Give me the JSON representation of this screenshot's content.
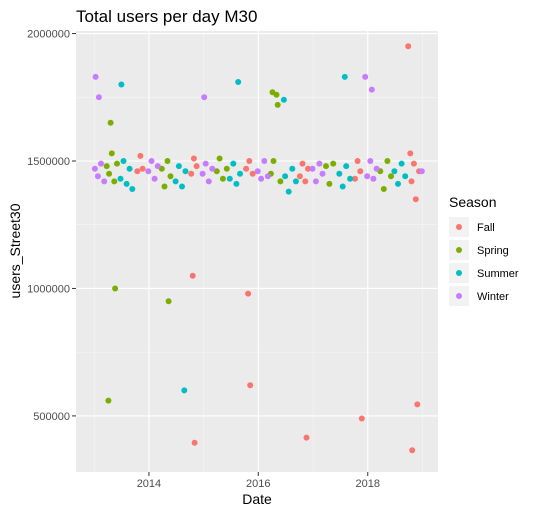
{
  "chart_data": {
    "type": "scatter",
    "title": "Total users per day M30",
    "xlabel": "Date",
    "ylabel": "users_Street30",
    "xlim": [
      "2012-09-01",
      "2019-04-15"
    ],
    "ylim": [
      280000,
      2010000
    ],
    "x_ticks": [
      "2014",
      "2016",
      "2018"
    ],
    "y_ticks": [
      "500000",
      "1000000",
      "1500000",
      "2000000"
    ],
    "grid": true,
    "legend": {
      "title": "Season",
      "placement": "right"
    },
    "series": [
      {
        "name": "Fall",
        "color": "#F8766D",
        "x": [
          "2013-10-15",
          "2013-11-05",
          "2013-11-20",
          "2014-10-10",
          "2014-10-28",
          "2014-11-15",
          "2015-10-12",
          "2015-11-02",
          "2015-11-25",
          "2016-10-05",
          "2016-10-22",
          "2016-11-10",
          "2016-11-28",
          "2017-10-08",
          "2017-10-25",
          "2017-11-12",
          "2018-09-28",
          "2018-10-12",
          "2018-10-20",
          "2018-11-05",
          "2018-11-18",
          "2018-12-10",
          "2014-11-02",
          "2015-11-08",
          "2016-11-18",
          "2017-11-22",
          "2018-10-25",
          "2018-11-28",
          "2014-10-20",
          "2015-10-25"
        ],
        "y": [
          1460000,
          1520000,
          1470000,
          1450000,
          1510000,
          1480000,
          1470000,
          1500000,
          1450000,
          1440000,
          1490000,
          1420000,
          1470000,
          1430000,
          1500000,
          1460000,
          1950000,
          1530000,
          1420000,
          1490000,
          1350000,
          1460000,
          395000,
          620000,
          415000,
          490000,
          365000,
          545000,
          1050000,
          980000
        ]
      },
      {
        "name": "Spring",
        "color": "#7CAE00",
        "x": [
          "2013-03-25",
          "2013-04-10",
          "2013-04-28",
          "2013-05-15",
          "2013-06-02",
          "2014-03-28",
          "2014-04-15",
          "2014-05-05",
          "2014-05-25",
          "2015-03-30",
          "2015-04-18",
          "2015-05-10",
          "2015-06-05",
          "2016-03-25",
          "2016-04-12",
          "2016-05-02",
          "2016-05-28",
          "2017-03-28",
          "2017-04-20",
          "2017-05-15",
          "2018-03-26",
          "2018-04-18",
          "2018-05-12",
          "2018-06-05",
          "2013-04-05",
          "2013-04-20",
          "2016-04-05",
          "2016-05-10",
          "2013-05-20",
          "2014-05-12"
        ],
        "y": [
          1480000,
          1450000,
          1530000,
          1420000,
          1490000,
          1470000,
          1400000,
          1500000,
          1440000,
          1460000,
          1510000,
          1430000,
          1470000,
          1450000,
          1500000,
          1760000,
          1420000,
          1480000,
          1410000,
          1490000,
          1460000,
          1390000,
          1500000,
          1440000,
          560000,
          1650000,
          1770000,
          1720000,
          1000000,
          950000
        ]
      },
      {
        "name": "Summer",
        "color": "#00BFC4",
        "x": [
          "2013-06-25",
          "2013-07-15",
          "2013-08-05",
          "2013-08-25",
          "2013-09-12",
          "2014-06-28",
          "2014-07-20",
          "2014-08-10",
          "2014-09-02",
          "2015-06-25",
          "2015-07-18",
          "2015-08-08",
          "2015-09-01",
          "2016-06-28",
          "2016-07-22",
          "2016-08-15",
          "2016-09-08",
          "2017-06-25",
          "2017-07-18",
          "2017-08-10",
          "2017-09-05",
          "2018-06-28",
          "2018-07-22",
          "2018-08-15",
          "2018-09-08",
          "2013-07-01",
          "2015-08-20",
          "2017-08-01",
          "2016-06-20",
          "2014-08-25"
        ],
        "y": [
          1430000,
          1500000,
          1410000,
          1470000,
          1390000,
          1420000,
          1480000,
          1400000,
          1460000,
          1430000,
          1490000,
          1410000,
          1450000,
          1440000,
          1380000,
          1470000,
          1420000,
          1450000,
          1400000,
          1480000,
          1430000,
          1460000,
          1410000,
          1490000,
          1440000,
          1800000,
          1810000,
          1830000,
          1740000,
          600000
        ]
      },
      {
        "name": "Winter",
        "color": "#C77CFF",
        "x": [
          "2013-01-05",
          "2013-01-25",
          "2013-02-15",
          "2013-03-08",
          "2013-12-28",
          "2014-01-18",
          "2014-02-08",
          "2014-03-01",
          "2014-12-25",
          "2015-01-15",
          "2015-02-05",
          "2015-02-28",
          "2015-12-28",
          "2016-01-20",
          "2016-02-10",
          "2016-03-05",
          "2016-12-28",
          "2017-01-20",
          "2017-02-12",
          "2017-03-05",
          "2017-12-28",
          "2018-01-18",
          "2018-02-08",
          "2018-03-01",
          "2018-12-28",
          "2013-01-10",
          "2013-02-01",
          "2015-01-05",
          "2017-12-15",
          "2018-01-28"
        ],
        "y": [
          1470000,
          1440000,
          1490000,
          1420000,
          1460000,
          1500000,
          1430000,
          1480000,
          1450000,
          1490000,
          1420000,
          1470000,
          1460000,
          1430000,
          1500000,
          1440000,
          1470000,
          1420000,
          1490000,
          1450000,
          1440000,
          1500000,
          1430000,
          1470000,
          1460000,
          1830000,
          1750000,
          1750000,
          1830000,
          1780000
        ]
      }
    ]
  }
}
